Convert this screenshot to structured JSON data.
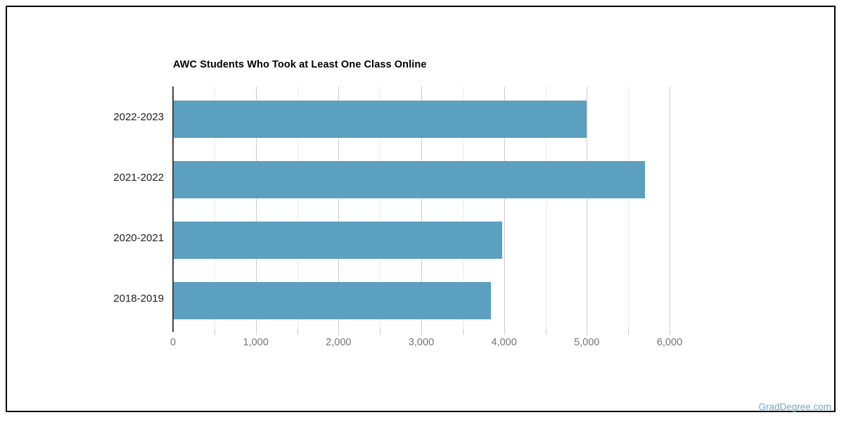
{
  "page": {
    "watermark": "GradDegree.com",
    "watermark_color": "#6fa8c6"
  },
  "chart_data": {
    "type": "bar",
    "orientation": "horizontal",
    "title": "AWC Students Who Took at Least One Class Online",
    "categories": [
      "2022-2023",
      "2021-2022",
      "2020-2021",
      "2018-2019"
    ],
    "values": [
      5000,
      5700,
      3980,
      3840
    ],
    "xlabel": "",
    "ylabel": "",
    "xlim": [
      0,
      6000
    ],
    "x_tick_values": [
      0,
      1000,
      2000,
      3000,
      4000,
      5000,
      6000
    ],
    "x_tick_labels": [
      "0",
      "1,000",
      "2,000",
      "3,000",
      "4,000",
      "5,000",
      "6,000"
    ],
    "minor_gridline_step": 500,
    "bar_color": "#5ba0be",
    "grid": true,
    "legend": "none"
  }
}
